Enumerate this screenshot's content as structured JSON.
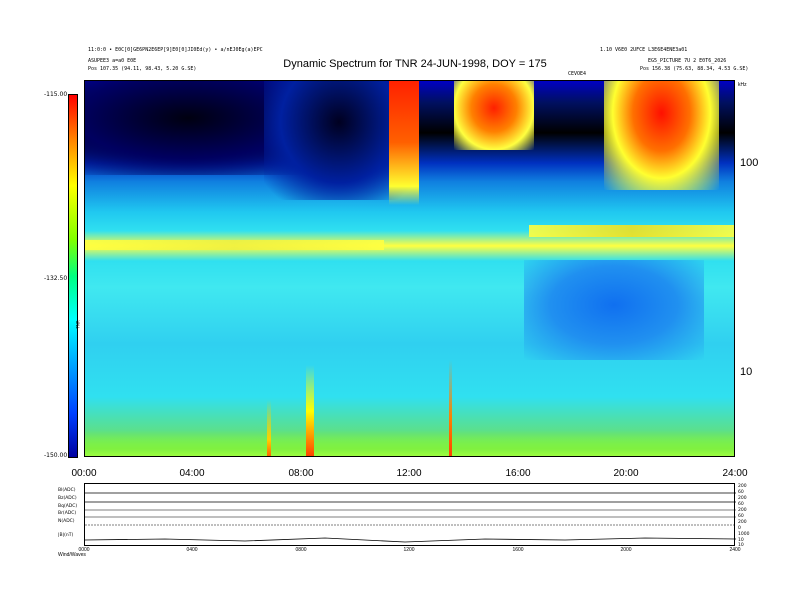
{
  "header": {
    "left_line1": "11:0:0 • E0C[0]GE6PN2E6EP[9]E0[0]JI0Ed(y) • a/nEJ0Eg(a)EPC",
    "left_line2": "ASUPEE3 a=a0 E0E",
    "left_line3": "Pos    107.35 (94.11, 98.43, 5.20 G.SE)",
    "right_line1": "1.10 V6E0 2UFCE                                    L3E6E4ENE3a01",
    "right_line2": "EG5_PICTURE 7U 2 E0T6_2026",
    "right_line3": "Pos    156.38 (75.63, 88.34, 4.53 G.SE)",
    "center_small": "CEVOE4"
  },
  "title": "Dynamic Spectrum for TNR 24-JUN-1998, DOY = 175",
  "colorbar": {
    "top_label": "-115.00",
    "mid_label": "-132.50",
    "bottom_label": "-150.00",
    "unit_label": "TNR"
  },
  "chart_data": {
    "type": "heatmap",
    "title": "Dynamic Spectrum for TNR 24-JUN-1998, DOY = 175",
    "xlabel": "",
    "ylabel": "",
    "x_tick_labels": [
      "00:00",
      "04:00",
      "08:00",
      "12:00",
      "16:00",
      "20:00",
      "24:00"
    ],
    "y_scale": "log",
    "y_tick_labels": [
      "100",
      "10"
    ],
    "y_units_label": "kHz",
    "color_range": [
      -150.0,
      -115.0
    ],
    "colorbar_ticks": [
      "-115.00",
      "-132.50",
      "-150.00"
    ],
    "colormap": [
      "#0000a0",
      "#0040ff",
      "#00a0ff",
      "#00ffff",
      "#00ff80",
      "#80ff00",
      "#ffff00",
      "#ff8000",
      "#ff0000"
    ]
  },
  "housekeeping": {
    "row_labels": [
      "Bl(ADC)",
      "Bz(ADC)",
      "Bq(ADC)",
      "Br(ADC)",
      "N(ADC)",
      "|B|(nT)"
    ],
    "right_labels": [
      "200",
      "60",
      "200",
      "60",
      "200",
      "60",
      "200",
      "0",
      "1000",
      "10",
      "10"
    ],
    "x_tick_labels": [
      "0000",
      "0400",
      "0800",
      "1200",
      "1600",
      "2000",
      "2400"
    ],
    "footer_label": "Wind/Waves"
  }
}
